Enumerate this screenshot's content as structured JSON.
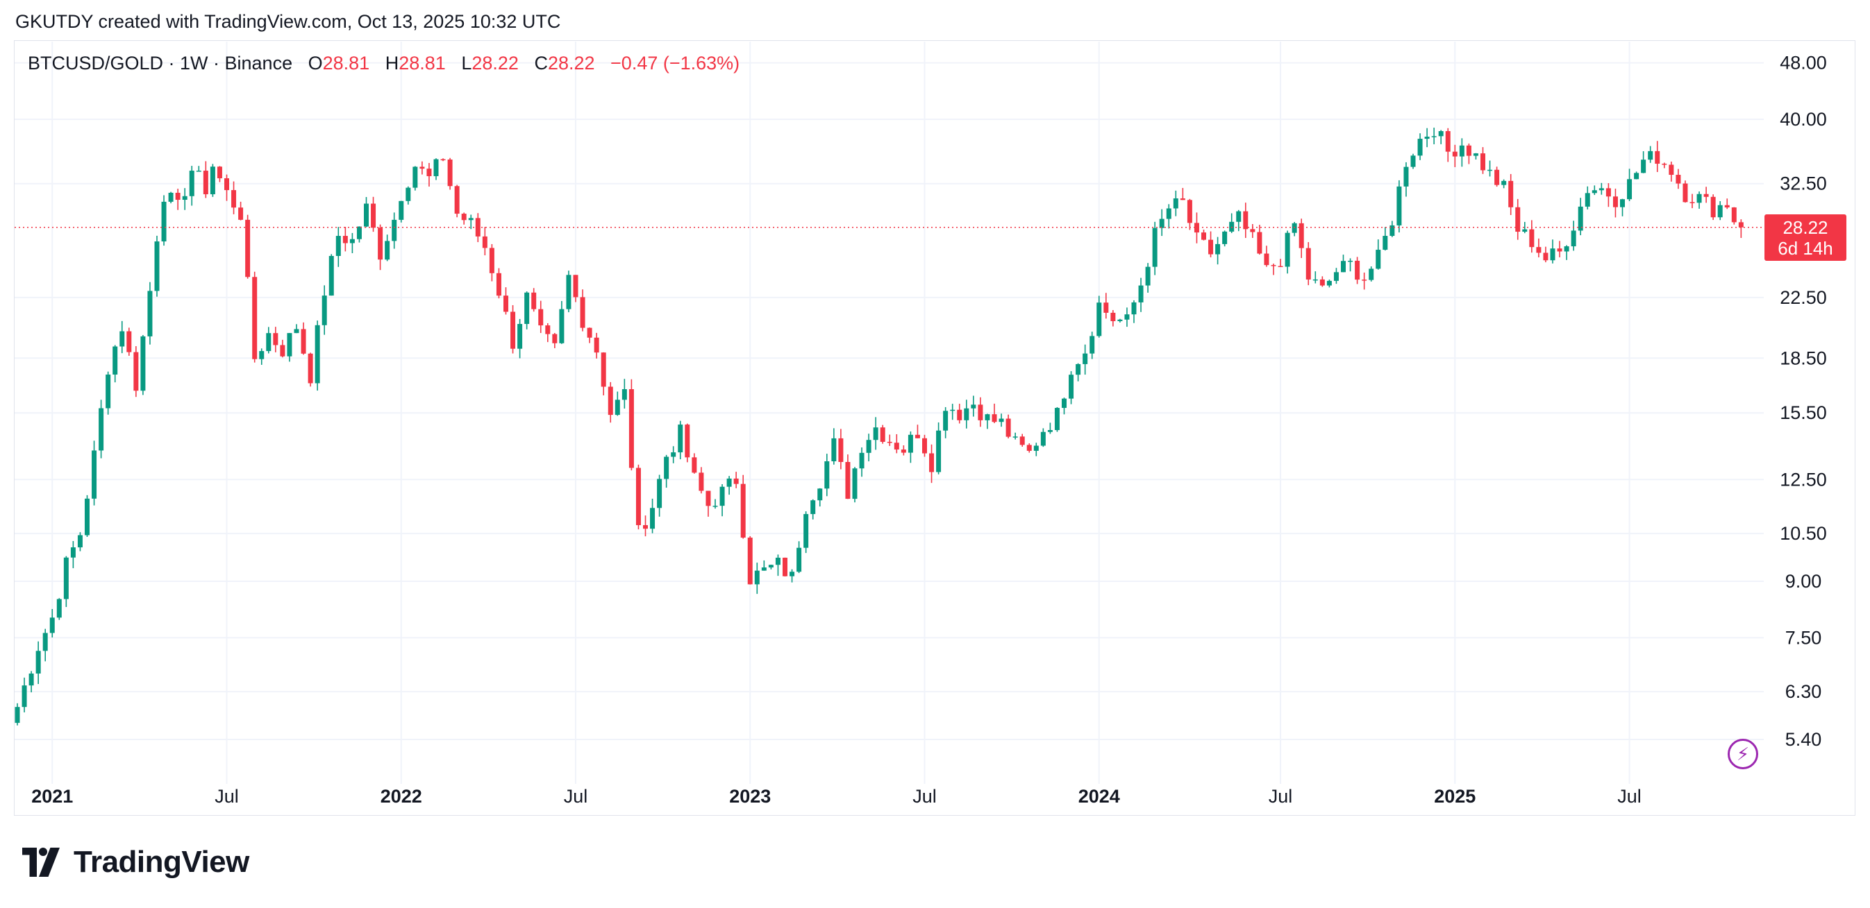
{
  "header": {
    "text": "GKUTDY created with TradingView.com, Oct 13, 2025 10:32 UTC"
  },
  "legend": {
    "symbol": "BTCUSD/GOLD · 1W · Binance",
    "o_label": "O",
    "o": "28.81",
    "h_label": "H",
    "h": "28.81",
    "l_label": "L",
    "l": "28.22",
    "c_label": "C",
    "c": "28.22",
    "change": "−0.47 (−1.63%)"
  },
  "price_tag": {
    "price": "28.22",
    "countdown": "6d 14h"
  },
  "brand": {
    "name": "TradingView"
  },
  "colors": {
    "up": "#089981",
    "down": "#f23645",
    "grid": "#f0f3fa",
    "axis_text": "#131722",
    "purple": "#9c27b0"
  },
  "icons": {
    "logo": "tradingview-logo-icon",
    "bolt": "lightning-icon"
  },
  "chart_data": {
    "type": "candlestick",
    "title": "BTCUSD/GOLD · 1W · Binance",
    "scale": "log",
    "y_ticks": [
      48.0,
      40.0,
      32.5,
      28.22,
      22.5,
      18.5,
      15.5,
      12.5,
      10.5,
      9.0,
      7.5,
      6.3,
      5.4
    ],
    "y_tick_labels": [
      "48.00",
      "40.00",
      "32.50",
      "22.50",
      "18.50",
      "15.50",
      "12.50",
      "10.50",
      "9.00",
      "7.50",
      "6.30",
      "5.40"
    ],
    "x_ticks": [
      {
        "label": "2021",
        "week": 5,
        "bold": true
      },
      {
        "label": "Jul",
        "week": 30,
        "bold": false
      },
      {
        "label": "2022",
        "week": 55,
        "bold": true
      },
      {
        "label": "Jul",
        "week": 80,
        "bold": false
      },
      {
        "label": "2023",
        "week": 105,
        "bold": true
      },
      {
        "label": "Jul",
        "week": 130,
        "bold": false
      },
      {
        "label": "2024",
        "week": 155,
        "bold": true
      },
      {
        "label": "Jul",
        "week": 181,
        "bold": false
      },
      {
        "label": "2025",
        "week": 206,
        "bold": true
      },
      {
        "label": "Jul",
        "week": 231,
        "bold": false
      }
    ],
    "last_price": 28.22,
    "anchors": [
      [
        0,
        6.0
      ],
      [
        3,
        7.3
      ],
      [
        5,
        8.0
      ],
      [
        7,
        9.5
      ],
      [
        9,
        10.5
      ],
      [
        11,
        13.5
      ],
      [
        13,
        18.0
      ],
      [
        15,
        20.5
      ],
      [
        17,
        17.0
      ],
      [
        19,
        23.0
      ],
      [
        20,
        27.5
      ],
      [
        21,
        31.5
      ],
      [
        23,
        30.0
      ],
      [
        25,
        34.0
      ],
      [
        27,
        32.0
      ],
      [
        28,
        34.5
      ],
      [
        30,
        31.5
      ],
      [
        32,
        29.5
      ],
      [
        34,
        18.5
      ],
      [
        36,
        20.0
      ],
      [
        38,
        19.0
      ],
      [
        40,
        20.5
      ],
      [
        42,
        17.5
      ],
      [
        44,
        23.0
      ],
      [
        46,
        27.5
      ],
      [
        48,
        27.0
      ],
      [
        50,
        30.0
      ],
      [
        52,
        26.0
      ],
      [
        54,
        29.0
      ],
      [
        55,
        31.5
      ],
      [
        57,
        34.5
      ],
      [
        59,
        33.0
      ],
      [
        61,
        35.5
      ],
      [
        63,
        29.5
      ],
      [
        65,
        28.5
      ],
      [
        67,
        26.5
      ],
      [
        69,
        23.0
      ],
      [
        71,
        19.5
      ],
      [
        73,
        22.5
      ],
      [
        75,
        20.0
      ],
      [
        77,
        19.0
      ],
      [
        79,
        24.0
      ],
      [
        81,
        21.0
      ],
      [
        83,
        19.0
      ],
      [
        85,
        15.5
      ],
      [
        87,
        16.5
      ],
      [
        89,
        10.5
      ],
      [
        91,
        11.5
      ],
      [
        93,
        13.5
      ],
      [
        95,
        14.5
      ],
      [
        97,
        12.5
      ],
      [
        99,
        11.5
      ],
      [
        101,
        12.0
      ],
      [
        103,
        12.5
      ],
      [
        105,
        9.1
      ],
      [
        107,
        9.3
      ],
      [
        109,
        9.5
      ],
      [
        111,
        9.1
      ],
      [
        113,
        11.5
      ],
      [
        115,
        12.5
      ],
      [
        117,
        14.0
      ],
      [
        119,
        12.0
      ],
      [
        121,
        14.0
      ],
      [
        123,
        14.8
      ],
      [
        125,
        14.2
      ],
      [
        127,
        13.8
      ],
      [
        129,
        14.6
      ],
      [
        131,
        13.2
      ],
      [
        133,
        16.0
      ],
      [
        135,
        15.5
      ],
      [
        137,
        16.0
      ],
      [
        139,
        15.2
      ],
      [
        141,
        15.0
      ],
      [
        143,
        14.0
      ],
      [
        145,
        13.6
      ],
      [
        147,
        14.7
      ],
      [
        149,
        15.4
      ],
      [
        151,
        18.0
      ],
      [
        153,
        19.0
      ],
      [
        155,
        22.0
      ],
      [
        157,
        21.0
      ],
      [
        159,
        20.8
      ],
      [
        161,
        23.5
      ],
      [
        163,
        27.5
      ],
      [
        165,
        30.0
      ],
      [
        167,
        30.5
      ],
      [
        169,
        27.0
      ],
      [
        171,
        26.0
      ],
      [
        173,
        27.5
      ],
      [
        175,
        29.0
      ],
      [
        177,
        27.0
      ],
      [
        179,
        24.5
      ],
      [
        181,
        25.5
      ],
      [
        183,
        28.5
      ],
      [
        185,
        24.0
      ],
      [
        187,
        23.0
      ],
      [
        189,
        24.5
      ],
      [
        191,
        25.0
      ],
      [
        193,
        24.0
      ],
      [
        195,
        25.5
      ],
      [
        197,
        29.0
      ],
      [
        199,
        35.0
      ],
      [
        201,
        37.5
      ],
      [
        203,
        39.0
      ],
      [
        205,
        36.0
      ],
      [
        207,
        37.0
      ],
      [
        209,
        35.5
      ],
      [
        211,
        33.5
      ],
      [
        213,
        32.0
      ],
      [
        215,
        28.0
      ],
      [
        217,
        27.0
      ],
      [
        219,
        25.5
      ],
      [
        221,
        26.0
      ],
      [
        223,
        28.5
      ],
      [
        225,
        32.0
      ],
      [
        227,
        32.0
      ],
      [
        229,
        31.0
      ],
      [
        231,
        32.5
      ],
      [
        233,
        35.0
      ],
      [
        235,
        35.5
      ],
      [
        237,
        34.0
      ],
      [
        239,
        31.5
      ],
      [
        241,
        31.0
      ],
      [
        243,
        30.0
      ],
      [
        245,
        30.5
      ],
      [
        246,
        28.69
      ],
      [
        247,
        28.22
      ]
    ],
    "n_weeks": 248
  }
}
